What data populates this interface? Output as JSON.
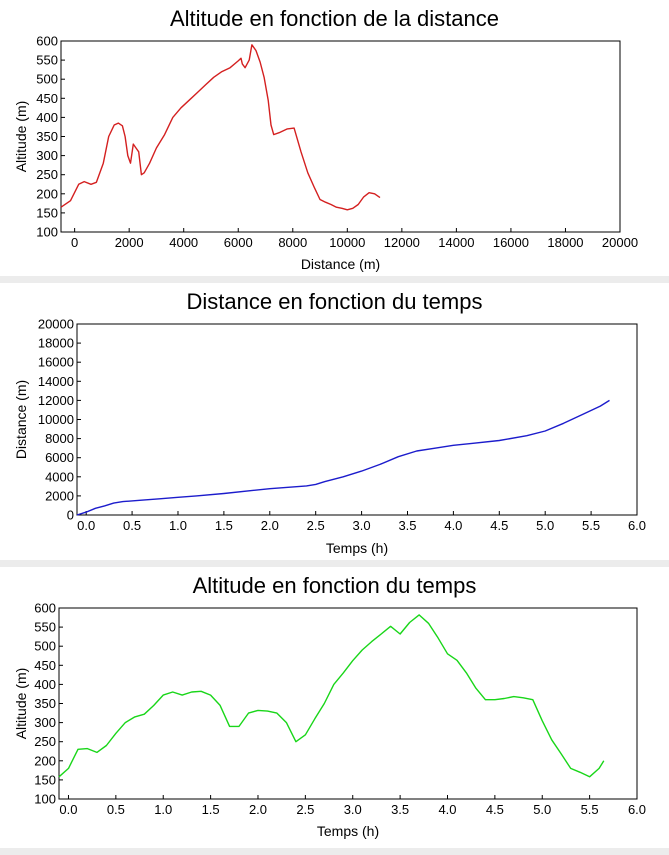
{
  "chart_data": [
    {
      "type": "line",
      "title": "Altitude en fonction de la distance",
      "xlabel": "Distance (m)",
      "ylabel": "Altitude (m)",
      "xlim": [
        -500,
        20000
      ],
      "ylim": [
        100,
        600
      ],
      "xticks": [
        "0",
        "2000",
        "4000",
        "6000",
        "8000",
        "10000",
        "12000",
        "14000",
        "16000",
        "18000",
        "20000"
      ],
      "yticks": [
        "100",
        "150",
        "200",
        "250",
        "300",
        "350",
        "400",
        "450",
        "500",
        "550",
        "600"
      ],
      "grid": false,
      "color": "#d42020",
      "series": [
        {
          "x": [
            -500,
            -150,
            150,
            350,
            600,
            800,
            1050,
            1250,
            1450,
            1600,
            1750,
            1850,
            1950,
            2050,
            2150,
            2250,
            2350,
            2450,
            2550,
            2750,
            3000,
            3300,
            3600,
            3900,
            4200,
            4500,
            4800,
            5100,
            5400,
            5700,
            6000,
            6100,
            6150,
            6250,
            6400,
            6500,
            6650,
            6800,
            6950,
            7100,
            7200,
            7300,
            7500,
            7800,
            8050,
            8300,
            8550,
            8800,
            9000,
            9200,
            9400,
            9600,
            9800,
            10000,
            10200,
            10400,
            10600,
            10800,
            11000,
            11200
          ],
          "y": [
            165,
            182,
            225,
            232,
            225,
            230,
            280,
            350,
            380,
            385,
            378,
            350,
            300,
            280,
            330,
            320,
            310,
            250,
            255,
            280,
            320,
            355,
            400,
            425,
            445,
            465,
            485,
            505,
            520,
            530,
            548,
            555,
            540,
            530,
            550,
            590,
            575,
            545,
            505,
            445,
            380,
            355,
            360,
            370,
            372,
            310,
            255,
            215,
            185,
            178,
            172,
            165,
            162,
            158,
            162,
            172,
            192,
            203,
            200,
            190
          ]
        }
      ]
    },
    {
      "type": "line",
      "title": "Distance en fonction du temps",
      "xlabel": "Temps (h)",
      "ylabel": "Distance (m)",
      "xlim": [
        -0.1,
        6.0
      ],
      "ylim": [
        0,
        20000
      ],
      "xticks": [
        "0.0",
        "0.5",
        "1.0",
        "1.5",
        "2.0",
        "2.5",
        "3.0",
        "3.5",
        "4.0",
        "4.5",
        "5.0",
        "5.5",
        "6.0"
      ],
      "yticks": [
        "0",
        "2000",
        "4000",
        "6000",
        "8000",
        "10000",
        "12000",
        "14000",
        "16000",
        "18000",
        "20000"
      ],
      "grid": false,
      "color": "#1c1ccc",
      "series": [
        {
          "x": [
            -0.1,
            0.0,
            0.1,
            0.2,
            0.3,
            0.4,
            0.6,
            0.8,
            1.0,
            1.2,
            1.5,
            1.8,
            2.0,
            2.2,
            2.4,
            2.5,
            2.6,
            2.8,
            3.0,
            3.2,
            3.4,
            3.6,
            3.8,
            4.0,
            4.2,
            4.5,
            4.8,
            5.0,
            5.2,
            5.4,
            5.6,
            5.7
          ],
          "y": [
            0,
            300,
            700,
            950,
            1250,
            1400,
            1550,
            1700,
            1850,
            2000,
            2250,
            2550,
            2750,
            2900,
            3050,
            3200,
            3500,
            4000,
            4600,
            5300,
            6100,
            6700,
            7000,
            7300,
            7500,
            7800,
            8300,
            8800,
            9600,
            10500,
            11400,
            12000
          ]
        }
      ]
    },
    {
      "type": "line",
      "title": "Altitude en fonction du temps",
      "xlabel": "Temps (h)",
      "ylabel": "Altitude (m)",
      "xlim": [
        -0.1,
        6.0
      ],
      "ylim": [
        100,
        600
      ],
      "xticks": [
        "0.0",
        "0.5",
        "1.0",
        "1.5",
        "2.0",
        "2.5",
        "3.0",
        "3.5",
        "4.0",
        "4.5",
        "5.0",
        "5.5",
        "6.0"
      ],
      "yticks": [
        "100",
        "150",
        "200",
        "250",
        "300",
        "350",
        "400",
        "450",
        "500",
        "550",
        "600"
      ],
      "grid": false,
      "color": "#19d619",
      "series": [
        {
          "x": [
            -0.1,
            0.0,
            0.1,
            0.2,
            0.3,
            0.4,
            0.5,
            0.6,
            0.7,
            0.8,
            0.9,
            1.0,
            1.1,
            1.2,
            1.3,
            1.4,
            1.5,
            1.6,
            1.7,
            1.8,
            1.9,
            2.0,
            2.1,
            2.2,
            2.3,
            2.4,
            2.5,
            2.6,
            2.7,
            2.8,
            2.9,
            3.0,
            3.1,
            3.2,
            3.3,
            3.4,
            3.5,
            3.6,
            3.7,
            3.8,
            3.9,
            4.0,
            4.1,
            4.2,
            4.3,
            4.4,
            4.5,
            4.6,
            4.7,
            4.8,
            4.9,
            5.0,
            5.1,
            5.2,
            5.3,
            5.4,
            5.5,
            5.6,
            5.65
          ],
          "y": [
            158,
            180,
            230,
            232,
            222,
            240,
            272,
            300,
            315,
            322,
            345,
            372,
            380,
            372,
            380,
            382,
            372,
            345,
            290,
            290,
            325,
            332,
            330,
            325,
            300,
            250,
            268,
            310,
            350,
            400,
            430,
            462,
            490,
            512,
            532,
            552,
            532,
            562,
            582,
            560,
            522,
            480,
            463,
            430,
            390,
            360,
            360,
            363,
            368,
            365,
            360,
            305,
            255,
            218,
            180,
            170,
            158,
            180,
            200
          ]
        }
      ]
    }
  ]
}
